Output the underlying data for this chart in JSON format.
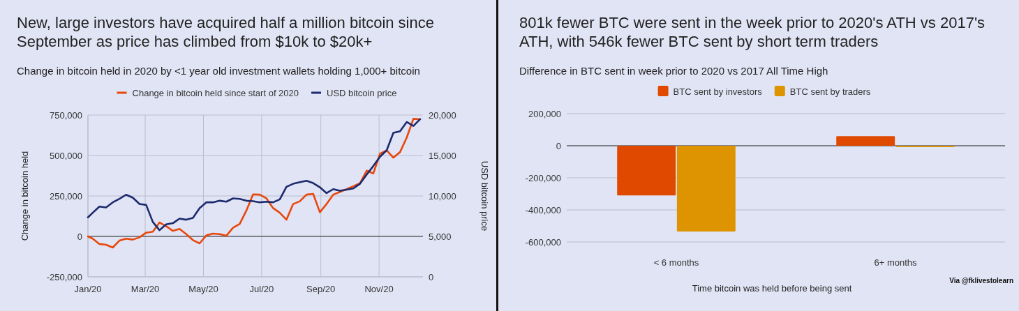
{
  "chart_data": [
    {
      "type": "line",
      "title": "New, large investors have acquired half a million bitcoin since September as price has climbed from $10k to $20k+",
      "subtitle": "Change in bitcoin held in 2020 by <1 year old investment wallets holding 1,000+ bitcoin",
      "ylabel": "Change in bitcoin held",
      "y2label": "USD bitcoin price",
      "x": [
        "2020-01-01",
        "2020-01-06",
        "2020-01-13",
        "2020-01-20",
        "2020-01-27",
        "2020-02-03",
        "2020-02-10",
        "2020-02-17",
        "2020-02-24",
        "2020-03-02",
        "2020-03-09",
        "2020-03-16",
        "2020-03-23",
        "2020-03-30",
        "2020-04-06",
        "2020-04-13",
        "2020-04-20",
        "2020-04-27",
        "2020-05-04",
        "2020-05-11",
        "2020-05-18",
        "2020-05-25",
        "2020-06-01",
        "2020-06-08",
        "2020-06-15",
        "2020-06-22",
        "2020-06-29",
        "2020-07-06",
        "2020-07-13",
        "2020-07-20",
        "2020-07-27",
        "2020-08-03",
        "2020-08-10",
        "2020-08-17",
        "2020-08-24",
        "2020-08-31",
        "2020-09-07",
        "2020-09-14",
        "2020-09-21",
        "2020-09-28",
        "2020-10-05",
        "2020-10-12",
        "2020-10-19",
        "2020-10-26",
        "2020-11-02",
        "2020-11-09",
        "2020-11-16",
        "2020-11-23",
        "2020-11-30",
        "2020-12-07",
        "2020-12-14"
      ],
      "series": [
        {
          "name": "Change in bitcoin held since start of 2020",
          "color": "#e8480c",
          "values": [
            0,
            -14000,
            -47000,
            -52000,
            -69000,
            -26000,
            -14000,
            -20000,
            -6000,
            23000,
            29000,
            86000,
            63000,
            34000,
            46000,
            14000,
            -23000,
            -43000,
            6000,
            17000,
            14000,
            4000,
            53000,
            77000,
            160000,
            260000,
            258000,
            235000,
            175000,
            146000,
            103000,
            200000,
            217000,
            258000,
            263000,
            149000,
            200000,
            258000,
            275000,
            292000,
            310000,
            328000,
            406000,
            389000,
            511000,
            532000,
            487000,
            521000,
            611000,
            727000,
            724000
          ]
        },
        {
          "name": "USD bitcoin price",
          "color": "#1c2a6e",
          "axis": "y2",
          "values": [
            7350,
            7920,
            8690,
            8580,
            9210,
            9640,
            10150,
            9780,
            9010,
            8890,
            6780,
            5770,
            6490,
            6630,
            7200,
            7060,
            7290,
            8490,
            9210,
            9210,
            9410,
            9290,
            9700,
            9640,
            9410,
            9350,
            9210,
            9290,
            9210,
            9580,
            11130,
            11500,
            11700,
            11870,
            11590,
            11070,
            10350,
            10840,
            10640,
            10780,
            10930,
            11500,
            12640,
            13700,
            14850,
            15650,
            17800,
            18000,
            19140,
            18660,
            19490
          ]
        }
      ],
      "xlim": [
        "2020-01-01",
        "2020-12-17"
      ],
      "xticks": [
        {
          "value": "2020-01-01",
          "label": "Jan/20"
        },
        {
          "value": "2020-03-01",
          "label": "Mar/20"
        },
        {
          "value": "2020-05-01",
          "label": "May/20"
        },
        {
          "value": "2020-07-01",
          "label": "Jul/20"
        },
        {
          "value": "2020-09-01",
          "label": "Sep/20"
        },
        {
          "value": "2020-11-01",
          "label": "Nov/20"
        }
      ],
      "ylim": [
        -250000,
        750000
      ],
      "yticks": [
        {
          "value": -250000,
          "label": "-250,000"
        },
        0,
        {
          "value": 250000,
          "label": "250,000"
        },
        {
          "value": 500000,
          "label": "500,000"
        },
        {
          "value": 750000,
          "label": "750,000"
        }
      ],
      "y2lim": [
        0,
        20000
      ],
      "y2ticks": [
        0,
        {
          "value": 5000,
          "label": "5,000"
        },
        {
          "value": 10000,
          "label": "10,000"
        },
        {
          "value": 15000,
          "label": "15,000"
        },
        {
          "value": 20000,
          "label": "20,000"
        }
      ],
      "grid": true,
      "legend": "top",
      "marker": "none",
      "line_style": "solid"
    },
    {
      "type": "bar",
      "title": "801k fewer BTC were sent in the week prior to 2020's ATH vs 2017's ATH, with 546k fewer BTC sent by short term traders",
      "subtitle": "Difference in BTC sent in week prior to 2020 vs 2017 All Time High",
      "xlabel": "Time bitcoin was held before being sent",
      "categories": [
        "< 6 months",
        "6+ months"
      ],
      "series": [
        {
          "name": "BTC sent by investors",
          "color": "#e04a00",
          "values": [
            -310000,
            60000
          ]
        },
        {
          "name": "BTC sent by traders",
          "color": "#de9400",
          "values": [
            -535000,
            -3000
          ]
        }
      ],
      "ylim": [
        -600000,
        200000
      ],
      "yticks": [
        {
          "value": -600000,
          "label": "-600,000"
        },
        {
          "value": -400000,
          "label": "-400,000"
        },
        {
          "value": -200000,
          "label": "-200,000"
        },
        0,
        {
          "value": 200000,
          "label": "200,000"
        }
      ],
      "grid": "y",
      "legend": "top",
      "annotations": [
        "Via @fklivestolearn"
      ]
    }
  ]
}
